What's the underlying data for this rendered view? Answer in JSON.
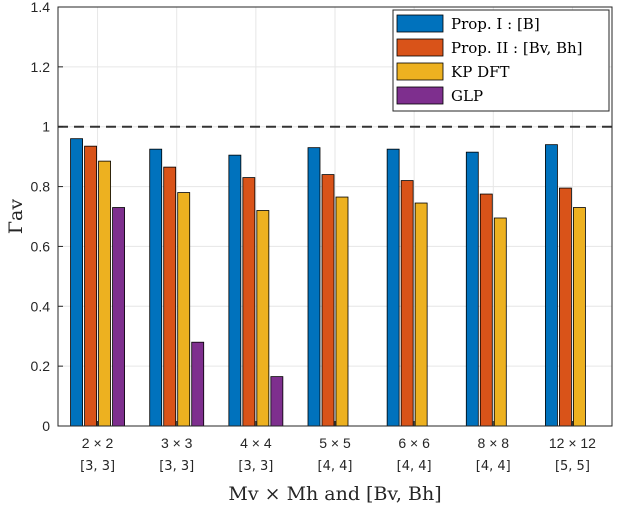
{
  "chart_data": {
    "type": "bar",
    "categories": [
      "2 × 2",
      "3 × 3",
      "4 × 4",
      "5 × 5",
      "6 × 6",
      "8 × 8",
      "12 × 12"
    ],
    "category_sublabels": [
      "[3, 3]",
      "[3, 3]",
      "[3, 3]",
      "[4, 4]",
      "[4, 4]",
      "[4, 4]",
      "[5, 5]"
    ],
    "series": [
      {
        "name": "Prop. I : [B]",
        "color": "#0072BD",
        "values": [
          0.96,
          0.925,
          0.905,
          0.93,
          0.925,
          0.915,
          0.94
        ]
      },
      {
        "name": "Prop. II : [Bv, Bh]",
        "color": "#D95319",
        "values": [
          0.935,
          0.865,
          0.83,
          0.84,
          0.82,
          0.775,
          0.795
        ]
      },
      {
        "name": "KP DFT",
        "color": "#EDB120",
        "values": [
          0.885,
          0.78,
          0.72,
          0.765,
          0.745,
          0.695,
          0.73
        ]
      },
      {
        "name": "GLP",
        "color": "#7E2F8E",
        "values": [
          0.73,
          0.28,
          0.165,
          0,
          0,
          0,
          0
        ]
      }
    ],
    "xlabel": "Mv × Mh and [Bv, Bh]",
    "ylabel": "Γav",
    "ylim": [
      0,
      1.4
    ],
    "yticks": [
      "0",
      "0.2",
      "0.4",
      "0.6",
      "0.8",
      "1",
      "1.2",
      "1.4"
    ],
    "reference_line": {
      "value": 1,
      "style": "dashed"
    },
    "grid": true,
    "legend_position": "top-right"
  }
}
